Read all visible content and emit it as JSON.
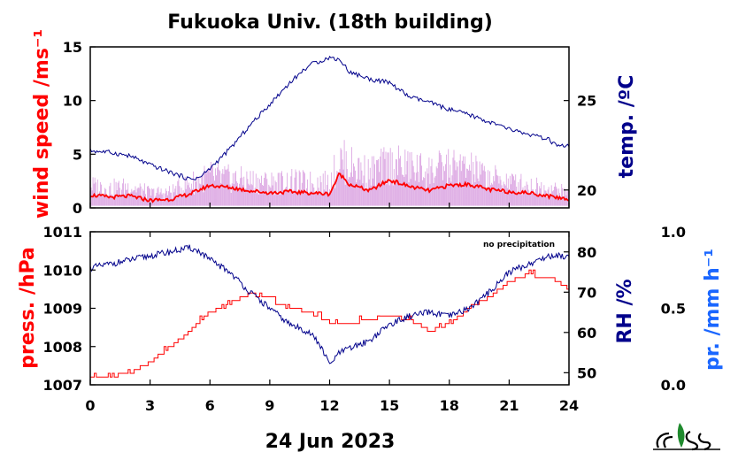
{
  "title": "Fukuoka Univ. (18th building)",
  "date_label": "24 Jun 2023",
  "note": "no precipitation",
  "colors": {
    "red": "#ff0000",
    "blue": "#00008b",
    "lightblue": "#1a66ff",
    "pink": "#d9a0e0",
    "black": "#000000"
  },
  "logo": {
    "name": "lab-logo",
    "text": "cies"
  },
  "chart_data": [
    {
      "type": "line",
      "panel": "upper",
      "title": "Fukuoka Univ. (18th building)",
      "xlabel": "24 Jun 2023",
      "x_ticks": [
        "0",
        "3",
        "6",
        "9",
        "12",
        "15",
        "18",
        "21",
        "24"
      ],
      "xlim": [
        0,
        24
      ],
      "ylabel_left": "wind speed /ms⁻¹",
      "ylim_left": [
        0,
        15
      ],
      "yticks_left": [
        "0",
        "5",
        "10",
        "15"
      ],
      "ylabel_right": "temp. /ºC",
      "ylim_right": [
        19,
        28
      ],
      "yticks_right": [
        "20",
        "25"
      ],
      "series": [
        {
          "axis": "left",
          "color": "#ff0000",
          "kind": "mean",
          "x": [
            0,
            1,
            2,
            3,
            4,
            5,
            6,
            7,
            8,
            9,
            10,
            11,
            12,
            12.5,
            13,
            14,
            15,
            16,
            17,
            18,
            19,
            20,
            21,
            22,
            23,
            24
          ],
          "y": [
            1.2,
            1.0,
            1.1,
            0.7,
            0.8,
            1.3,
            2.1,
            1.9,
            1.6,
            1.4,
            1.5,
            1.4,
            1.3,
            3.2,
            2.2,
            1.6,
            2.6,
            2.0,
            1.6,
            2.1,
            2.2,
            1.7,
            1.5,
            1.4,
            1.1,
            0.8
          ]
        },
        {
          "axis": "left",
          "color": "#d9a0e0",
          "kind": "gust",
          "x": [
            0,
            1,
            2,
            3,
            4,
            5,
            6,
            7,
            8,
            9,
            10,
            11,
            12,
            12.5,
            13,
            14,
            15,
            16,
            17,
            18,
            19,
            20,
            21,
            22,
            23,
            24
          ],
          "y": [
            2.3,
            2.0,
            2.2,
            1.5,
            1.6,
            2.5,
            3.3,
            3.0,
            2.8,
            2.6,
            2.7,
            2.6,
            2.6,
            5.0,
            4.4,
            3.6,
            4.5,
            4.2,
            3.8,
            4.2,
            4.0,
            3.1,
            2.7,
            2.3,
            2.0,
            1.5
          ]
        },
        {
          "axis": "right",
          "color": "#00008b",
          "kind": "temperature",
          "x": [
            0,
            1,
            2,
            3,
            4,
            5,
            5.5,
            6,
            7,
            8,
            9,
            10,
            11,
            12,
            12.5,
            13,
            14,
            15,
            16,
            17,
            18,
            19,
            20,
            21,
            22,
            23,
            23.5,
            24
          ],
          "y": [
            22.2,
            22.1,
            21.9,
            21.4,
            21.0,
            20.6,
            20.7,
            21.2,
            22.3,
            23.6,
            24.8,
            26.0,
            27.0,
            27.4,
            27.3,
            26.6,
            26.2,
            26.0,
            25.2,
            24.9,
            24.5,
            24.2,
            23.8,
            23.4,
            23.1,
            22.8,
            22.4,
            22.5
          ]
        }
      ]
    },
    {
      "type": "line",
      "panel": "lower",
      "xlabel": "24 Jun 2023",
      "x_ticks": [
        "0",
        "3",
        "6",
        "9",
        "12",
        "15",
        "18",
        "21",
        "24"
      ],
      "xlim": [
        0,
        24
      ],
      "ylabel_left": "press. /hPa",
      "ylim_left": [
        1007,
        1011
      ],
      "yticks_left": [
        "1007",
        "1008",
        "1009",
        "1010",
        "1011"
      ],
      "ylabel_right": "RH /%",
      "ylim_right": [
        47,
        85
      ],
      "yticks_right": [
        "50",
        "60",
        "70",
        "80"
      ],
      "ylabel_right2": "pr. /mm h⁻¹",
      "ylim_right2": [
        0,
        1
      ],
      "yticks_right2": [
        "0.0",
        "0.5",
        "1.0"
      ],
      "series": [
        {
          "axis": "left",
          "color": "#ff0000",
          "kind": "pressure",
          "step": true,
          "x": [
            0,
            1,
            2,
            3,
            4,
            5,
            6,
            7,
            8,
            8.5,
            9,
            10,
            11,
            12,
            13,
            14,
            15,
            16,
            17,
            18,
            19,
            20,
            21,
            22,
            22.5,
            23,
            24
          ],
          "y": [
            1007.2,
            1007.2,
            1007.3,
            1007.6,
            1008.0,
            1008.4,
            1008.9,
            1009.1,
            1009.4,
            1009.3,
            1009.2,
            1009.0,
            1008.9,
            1008.6,
            1008.6,
            1008.7,
            1008.8,
            1008.7,
            1008.4,
            1008.6,
            1009.0,
            1009.3,
            1009.7,
            1009.9,
            1009.8,
            1009.8,
            1009.5
          ]
        },
        {
          "axis": "right",
          "color": "#00008b",
          "kind": "relative-humidity",
          "x": [
            0,
            1,
            2,
            3,
            4,
            5,
            5.5,
            6,
            7,
            8,
            9,
            10,
            11,
            11.5,
            12,
            12.5,
            13,
            14,
            15,
            16,
            17,
            18,
            19,
            20,
            21,
            22,
            23,
            24
          ],
          "y": [
            76,
            77,
            78,
            79,
            80,
            81,
            80,
            78,
            75,
            70,
            66,
            62,
            60,
            57,
            52,
            55,
            56,
            58,
            62,
            64,
            65,
            64,
            66,
            70,
            75,
            77,
            79,
            79
          ]
        }
      ]
    }
  ]
}
